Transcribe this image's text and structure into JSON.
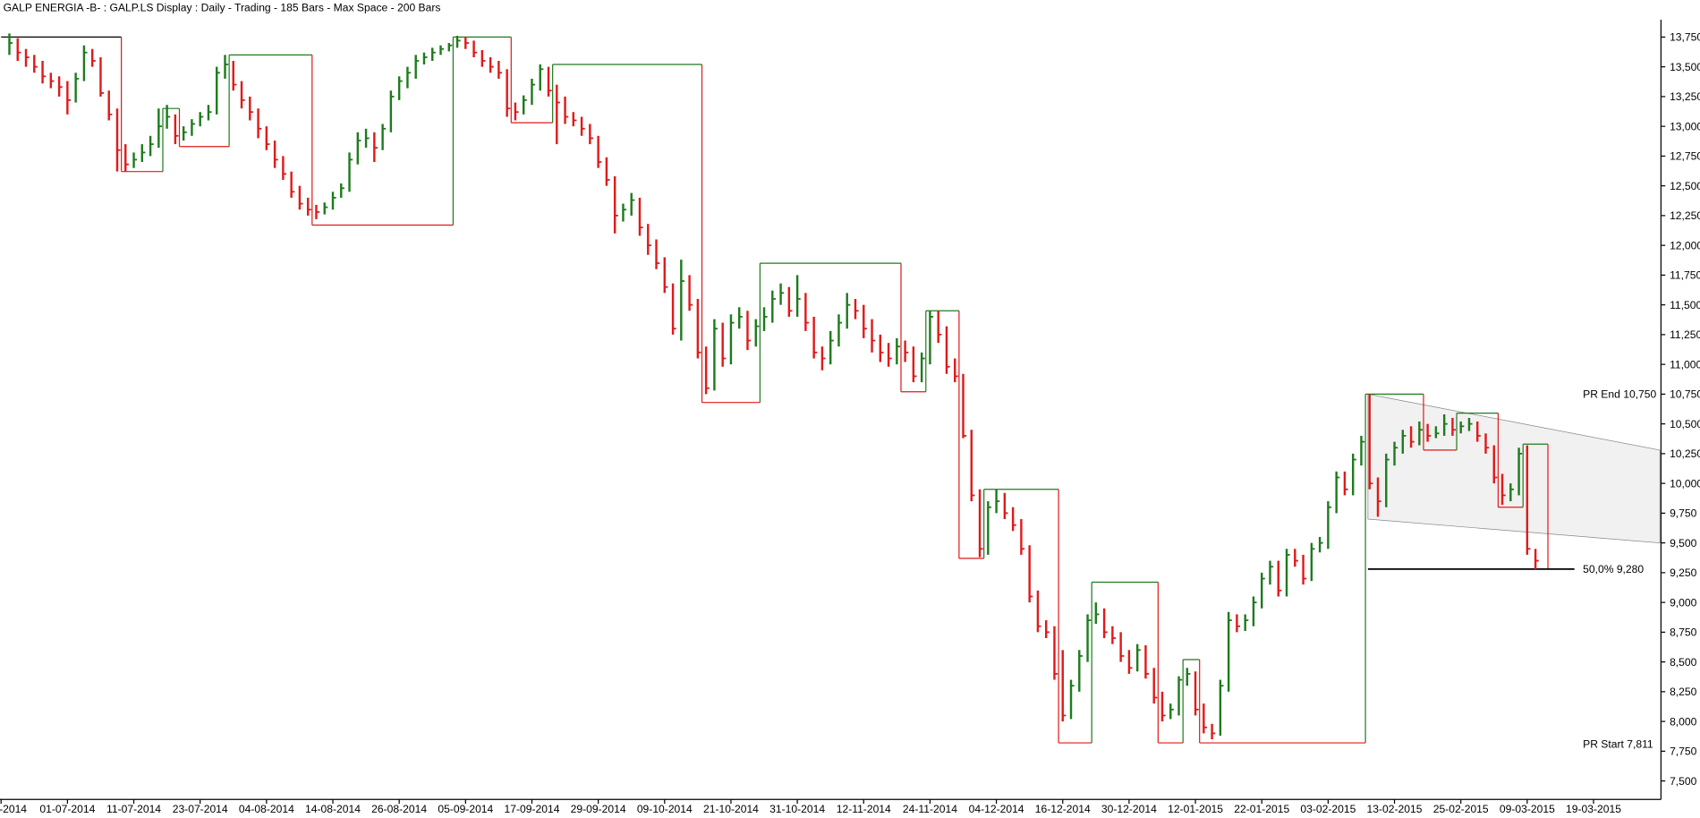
{
  "chart_data": {
    "type": "ohlc",
    "title": "GALP ENERGIA -B- : GALP.LS Display :  Daily  - Trading - 185 Bars  - Max Space - 200 Bars",
    "colors": {
      "up": "#1e7b1e",
      "down": "#e01a1a",
      "swing": "#000000",
      "level": "#000000",
      "channel": "#e8e8e8"
    },
    "close": [
      13.7,
      13.62,
      13.58,
      13.5,
      13.42,
      13.38,
      13.33,
      13.22,
      13.4,
      13.62,
      13.55,
      13.28,
      13.1,
      12.8,
      12.68,
      12.72,
      12.78,
      12.85,
      13.0,
      13.08,
      12.92,
      12.95,
      13.02,
      13.08,
      13.12,
      13.45,
      13.52,
      13.35,
      13.22,
      13.12,
      12.98,
      12.85,
      12.72,
      12.6,
      12.45,
      12.35,
      12.3,
      12.28,
      12.32,
      12.4,
      12.48,
      12.72,
      12.88,
      12.9,
      12.82,
      12.98,
      13.25,
      13.38,
      13.45,
      13.55,
      13.58,
      13.62,
      13.65,
      13.68,
      13.72,
      13.7,
      13.62,
      13.55,
      13.5,
      13.45,
      13.15,
      13.12,
      13.22,
      13.35,
      13.48,
      13.3,
      13.2,
      13.08,
      13.05,
      12.98,
      12.9,
      12.7,
      12.55,
      12.25,
      12.3,
      12.38,
      12.15,
      12.0,
      11.85,
      11.65,
      11.3,
      11.7,
      11.5,
      11.1,
      10.8,
      11.3,
      11.05,
      11.35,
      11.4,
      11.2,
      11.32,
      11.4,
      11.55,
      11.6,
      11.45,
      11.55,
      11.35,
      11.1,
      11.05,
      11.2,
      11.35,
      11.5,
      11.45,
      11.3,
      11.2,
      11.1,
      11.05,
      11.15,
      11.1,
      10.9,
      11.05,
      11.4,
      11.25,
      10.98,
      10.9,
      10.4,
      9.9,
      9.45,
      9.8,
      9.85,
      9.75,
      9.65,
      9.45,
      9.05,
      8.8,
      8.75,
      8.4,
      8.05,
      8.3,
      8.55,
      8.85,
      8.9,
      8.75,
      8.7,
      8.55,
      8.45,
      8.6,
      8.4,
      8.2,
      8.05,
      8.1,
      8.35,
      8.4,
      8.1,
      7.95,
      7.9,
      8.3,
      8.85,
      8.8,
      8.85,
      9.0,
      9.2,
      9.3,
      9.1,
      9.4,
      9.35,
      9.2,
      9.45,
      9.5,
      9.8,
      10.05,
      9.95,
      10.2,
      10.35,
      10.0,
      9.85,
      10.2,
      10.3,
      10.4,
      10.35,
      10.45,
      10.4,
      10.42,
      10.5,
      10.45,
      10.48,
      10.5,
      10.4,
      10.3,
      10.05,
      9.9,
      9.95,
      10.25,
      9.45,
      9.35
    ],
    "high": [
      13.78,
      13.74,
      13.65,
      13.6,
      13.55,
      13.45,
      13.42,
      13.38,
      13.45,
      13.68,
      13.65,
      13.58,
      13.3,
      13.15,
      12.85,
      12.78,
      12.85,
      12.92,
      13.15,
      13.18,
      13.1,
      13.0,
      13.06,
      13.12,
      13.18,
      13.5,
      13.6,
      13.55,
      13.38,
      13.25,
      13.15,
      13.0,
      12.88,
      12.75,
      12.62,
      12.5,
      12.4,
      12.34,
      12.36,
      12.45,
      12.52,
      12.78,
      12.95,
      12.98,
      12.95,
      13.02,
      13.3,
      13.42,
      13.5,
      13.6,
      13.62,
      13.66,
      13.68,
      13.7,
      13.76,
      13.75,
      13.72,
      13.64,
      13.58,
      13.55,
      13.48,
      13.2,
      13.26,
      13.4,
      13.52,
      13.5,
      13.35,
      13.25,
      13.12,
      13.08,
      13.02,
      12.92,
      12.74,
      12.58,
      12.35,
      12.44,
      12.4,
      12.18,
      12.05,
      11.9,
      11.68,
      11.88,
      11.75,
      11.55,
      11.15,
      11.38,
      11.35,
      11.42,
      11.48,
      11.45,
      11.38,
      11.48,
      11.62,
      11.68,
      11.65,
      11.75,
      11.6,
      11.4,
      11.15,
      11.28,
      11.42,
      11.6,
      11.55,
      11.5,
      11.38,
      11.25,
      11.18,
      11.22,
      11.2,
      11.15,
      11.1,
      11.45,
      11.45,
      11.32,
      11.05,
      10.92,
      10.45,
      9.95,
      9.85,
      9.95,
      9.92,
      9.8,
      9.7,
      9.48,
      9.1,
      8.85,
      8.8,
      8.6,
      8.35,
      8.6,
      8.9,
      9.0,
      8.95,
      8.8,
      8.75,
      8.6,
      8.65,
      8.64,
      8.45,
      8.25,
      8.15,
      8.38,
      8.45,
      8.42,
      8.15,
      7.98,
      8.35,
      8.92,
      8.9,
      8.9,
      9.05,
      9.25,
      9.35,
      9.35,
      9.45,
      9.45,
      9.4,
      9.5,
      9.55,
      9.85,
      10.1,
      10.1,
      10.25,
      10.4,
      10.75,
      10.05,
      10.25,
      10.35,
      10.45,
      10.48,
      10.52,
      10.5,
      10.48,
      10.58,
      10.55,
      10.52,
      10.55,
      10.52,
      10.42,
      10.32,
      10.08,
      10.0,
      10.3,
      10.32,
      9.45
    ],
    "low": [
      13.6,
      13.55,
      13.5,
      13.45,
      13.36,
      13.32,
      13.25,
      13.1,
      13.2,
      13.38,
      13.5,
      13.25,
      13.05,
      12.62,
      12.62,
      12.65,
      12.7,
      12.75,
      12.82,
      12.98,
      12.85,
      12.88,
      12.92,
      13.0,
      13.05,
      13.1,
      13.4,
      13.3,
      13.15,
      13.05,
      12.9,
      12.8,
      12.65,
      12.55,
      12.4,
      12.3,
      12.25,
      12.22,
      12.26,
      12.3,
      12.4,
      12.45,
      12.68,
      12.82,
      12.7,
      12.8,
      12.95,
      13.22,
      13.32,
      13.4,
      13.52,
      13.55,
      13.6,
      13.63,
      13.66,
      13.65,
      13.58,
      13.5,
      13.45,
      13.4,
      13.08,
      13.05,
      13.1,
      13.18,
      13.3,
      13.25,
      12.85,
      13.02,
      13.0,
      12.92,
      12.85,
      12.65,
      12.5,
      12.1,
      12.2,
      12.25,
      12.08,
      11.92,
      11.8,
      11.6,
      11.25,
      11.2,
      11.45,
      11.05,
      10.75,
      10.78,
      10.98,
      11.0,
      11.3,
      11.12,
      11.15,
      11.28,
      11.35,
      11.5,
      11.4,
      11.4,
      11.28,
      11.05,
      10.95,
      11.0,
      11.15,
      11.3,
      11.38,
      11.22,
      11.1,
      11.02,
      10.98,
      11.0,
      11.02,
      10.85,
      10.85,
      11.0,
      11.18,
      10.92,
      10.85,
      10.38,
      9.85,
      9.38,
      9.4,
      9.75,
      9.7,
      9.6,
      9.4,
      9.0,
      8.75,
      8.7,
      8.35,
      8.0,
      8.02,
      8.25,
      8.5,
      8.82,
      8.7,
      8.65,
      8.5,
      8.4,
      8.42,
      8.36,
      8.15,
      8.0,
      8.02,
      8.05,
      8.3,
      8.05,
      7.9,
      7.85,
      7.88,
      8.25,
      8.75,
      8.76,
      8.8,
      8.95,
      9.15,
      9.05,
      9.05,
      9.3,
      9.15,
      9.18,
      9.42,
      9.45,
      9.75,
      9.9,
      9.9,
      10.15,
      9.95,
      9.72,
      9.8,
      10.15,
      10.25,
      10.3,
      10.32,
      10.35,
      10.38,
      10.4,
      10.4,
      10.42,
      10.44,
      10.35,
      10.25,
      10.0,
      9.82,
      9.85,
      9.9,
      9.4,
      9.28
    ],
    "swing_line": {
      "x": [
        -1,
        13.5,
        18.5,
        20.5,
        26.5,
        36.5,
        53.5,
        60.5,
        65.5,
        83.5,
        90.5,
        107.5,
        110.5,
        114.5,
        117.5,
        126.5,
        130.5,
        138.5,
        141.5,
        143.5,
        163.5,
        170.5,
        174.5,
        179.5,
        182.5,
        185.5
      ],
      "values": [
        13.75,
        12.62,
        13.15,
        12.83,
        13.6,
        12.17,
        13.75,
        13.03,
        13.52,
        10.68,
        11.85,
        10.77,
        11.45,
        9.37,
        9.95,
        7.82,
        9.17,
        7.82,
        8.52,
        7.82,
        10.75,
        10.28,
        10.59,
        9.8,
        10.33,
        9.28
      ]
    },
    "channel": {
      "x": [
        163.8,
        199
      ],
      "upper": [
        10.75,
        10.28
      ],
      "lower": [
        9.7,
        9.5
      ]
    },
    "level_line": {
      "x": [
        163.8,
        188.7
      ],
      "value": 9.28
    },
    "annotations": [
      {
        "text": "PR End 10,750",
        "value": 10.75
      },
      {
        "text": "50,0% 9,280",
        "value": 9.28
      },
      {
        "text": "PR Start 7,811",
        "value": 7.811
      }
    ],
    "xlim": [
      -1,
      199
    ],
    "xticks": [
      {
        "value": -1,
        "label": "-2014"
      },
      {
        "value": 7,
        "label": "01-07-2014"
      },
      {
        "value": 15,
        "label": "11-07-2014"
      },
      {
        "value": 23,
        "label": "23-07-2014"
      },
      {
        "value": 31,
        "label": "04-08-2014"
      },
      {
        "value": 39,
        "label": "14-08-2014"
      },
      {
        "value": 47,
        "label": "26-08-2014"
      },
      {
        "value": 55,
        "label": "05-09-2014"
      },
      {
        "value": 63,
        "label": "17-09-2014"
      },
      {
        "value": 71,
        "label": "29-09-2014"
      },
      {
        "value": 79,
        "label": "09-10-2014"
      },
      {
        "value": 87,
        "label": "21-10-2014"
      },
      {
        "value": 95,
        "label": "31-10-2014"
      },
      {
        "value": 103,
        "label": "12-11-2014"
      },
      {
        "value": 111,
        "label": "24-11-2014"
      },
      {
        "value": 119,
        "label": "04-12-2014"
      },
      {
        "value": 127,
        "label": "16-12-2014"
      },
      {
        "value": 135,
        "label": "30-12-2014"
      },
      {
        "value": 143,
        "label": "12-01-2015"
      },
      {
        "value": 151,
        "label": "22-01-2015"
      },
      {
        "value": 159,
        "label": "03-02-2015"
      },
      {
        "value": 167,
        "label": "13-02-2015"
      },
      {
        "value": 175,
        "label": "25-02-2015"
      },
      {
        "value": 183,
        "label": "09-03-2015"
      },
      {
        "value": 191,
        "label": "19-03-2015"
      }
    ],
    "ylim": [
      7.345,
      13.896
    ],
    "yticks": [
      {
        "value": 7.5,
        "label": "7,500"
      },
      {
        "value": 7.75,
        "label": "7,750"
      },
      {
        "value": 8,
        "label": "8,000"
      },
      {
        "value": 8.25,
        "label": "8,250"
      },
      {
        "value": 8.5,
        "label": "8,500"
      },
      {
        "value": 8.75,
        "label": "8,750"
      },
      {
        "value": 9,
        "label": "9,000"
      },
      {
        "value": 9.25,
        "label": "9,250"
      },
      {
        "value": 9.5,
        "label": "9,500"
      },
      {
        "value": 9.75,
        "label": "9,750"
      },
      {
        "value": 10,
        "label": "10,000"
      },
      {
        "value": 10.25,
        "label": "10,250"
      },
      {
        "value": 10.5,
        "label": "10,500"
      },
      {
        "value": 10.75,
        "label": "10,750"
      },
      {
        "value": 11,
        "label": "11,000"
      },
      {
        "value": 11.25,
        "label": "11,250"
      },
      {
        "value": 11.5,
        "label": "11,500"
      },
      {
        "value": 11.75,
        "label": "11,750"
      },
      {
        "value": 12,
        "label": "12,000"
      },
      {
        "value": 12.25,
        "label": "12,250"
      },
      {
        "value": 12.5,
        "label": "12,500"
      },
      {
        "value": 12.75,
        "label": "12,750"
      },
      {
        "value": 13,
        "label": "13,000"
      },
      {
        "value": 13.25,
        "label": "13,250"
      },
      {
        "value": 13.5,
        "label": "13,500"
      },
      {
        "value": 13.75,
        "label": "13,750"
      }
    ]
  }
}
